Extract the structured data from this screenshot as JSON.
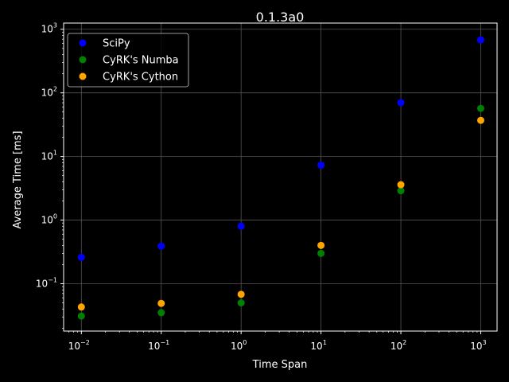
{
  "chart_data": {
    "type": "scatter",
    "title": "0.1.3a0",
    "xlabel": "Time Span",
    "ylabel": "Average Time [ms]",
    "xscale": "log",
    "yscale": "log",
    "xlim": [
      0.006,
      1600
    ],
    "ylim": [
      0.018,
      1250
    ],
    "grid": true,
    "legend_position": "top-left",
    "x_ticks": [
      {
        "value": 0.01,
        "base": "10",
        "exp": "−2"
      },
      {
        "value": 0.1,
        "base": "10",
        "exp": "−1"
      },
      {
        "value": 1,
        "base": "10",
        "exp": "0"
      },
      {
        "value": 10,
        "base": "10",
        "exp": "1"
      },
      {
        "value": 100,
        "base": "10",
        "exp": "2"
      },
      {
        "value": 1000,
        "base": "10",
        "exp": "3"
      }
    ],
    "y_ticks": [
      {
        "value": 0.1,
        "base": "10",
        "exp": "−1"
      },
      {
        "value": 1,
        "base": "10",
        "exp": "0"
      },
      {
        "value": 10,
        "base": "10",
        "exp": "1"
      },
      {
        "value": 100,
        "base": "10",
        "exp": "2"
      },
      {
        "value": 1000,
        "base": "10",
        "exp": "3"
      }
    ],
    "x": [
      0.01,
      0.1,
      1,
      10,
      100,
      1000
    ],
    "series": [
      {
        "name": "SciPy",
        "color": "#0000ff",
        "values": [
          0.26,
          0.39,
          0.8,
          7.3,
          70,
          680
        ]
      },
      {
        "name": "CyRK's Numba",
        "color": "#008000",
        "values": [
          0.031,
          0.035,
          0.05,
          0.3,
          2.9,
          57
        ]
      },
      {
        "name": "CyRK's Cython",
        "color": "#ffa500",
        "values": [
          0.043,
          0.049,
          0.068,
          0.4,
          3.6,
          37
        ]
      }
    ]
  }
}
